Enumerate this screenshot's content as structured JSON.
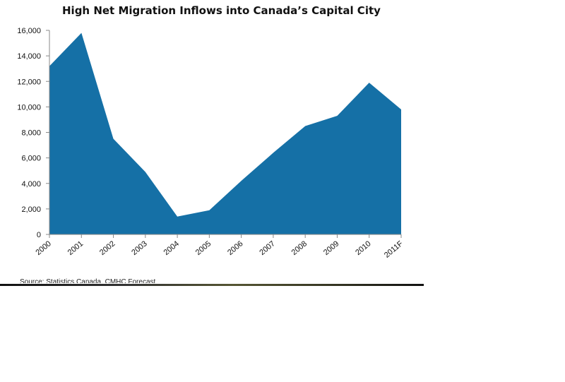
{
  "chart_data": {
    "type": "area",
    "title": "High Net Migration Inflows into Canada’s Capital City",
    "xlabel": "",
    "ylabel": "",
    "categories": [
      "2000",
      "2001",
      "2002",
      "2003",
      "2004",
      "2005",
      "2006",
      "2007",
      "2008",
      "2009",
      "2010",
      "2011F"
    ],
    "values": [
      13200,
      15800,
      7500,
      4900,
      1400,
      1900,
      4200,
      6400,
      8500,
      9300,
      11900,
      9800
    ],
    "ylim": [
      0,
      16000
    ],
    "yticks": [
      "0",
      "2,000",
      "4,000",
      "6,000",
      "8,000",
      "10,000",
      "12,000",
      "14,000",
      "16,000"
    ],
    "grid": false,
    "legend": "none",
    "fill_color": "#1570a6",
    "axis_color": "#888888"
  },
  "source": "Source: Statistics Canada, CMHC Forecast"
}
